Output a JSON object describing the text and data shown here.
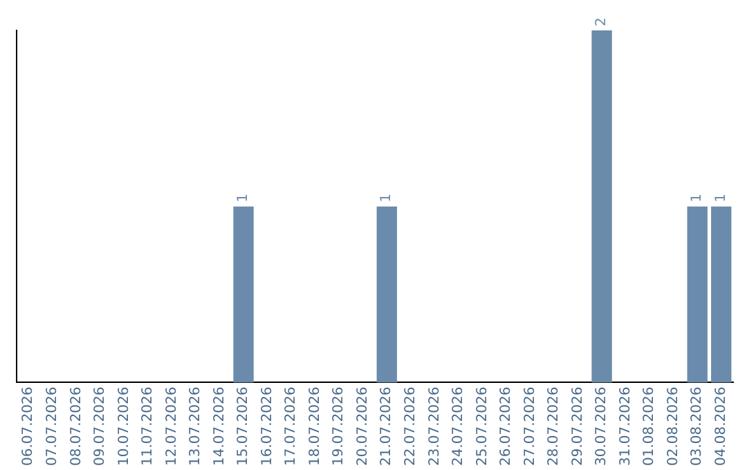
{
  "chart_data": {
    "type": "bar",
    "categories": [
      "06.07.2026",
      "07.07.2026",
      "08.07.2026",
      "09.07.2026",
      "10.07.2026",
      "11.07.2026",
      "12.07.2026",
      "13.07.2026",
      "14.07.2026",
      "15.07.2026",
      "16.07.2026",
      "17.07.2026",
      "18.07.2026",
      "19.07.2026",
      "20.07.2026",
      "21.07.2026",
      "22.07.2026",
      "23.07.2026",
      "24.07.2026",
      "25.07.2026",
      "26.07.2026",
      "27.07.2026",
      "28.07.2026",
      "29.07.2026",
      "30.07.2026",
      "31.07.2026",
      "01.08.2026",
      "02.08.2026",
      "03.08.2026",
      "04.08.2026"
    ],
    "values": [
      0,
      0,
      0,
      0,
      0,
      0,
      0,
      0,
      0,
      1,
      0,
      0,
      0,
      0,
      0,
      1,
      0,
      0,
      0,
      0,
      0,
      0,
      0,
      0,
      2,
      0,
      0,
      0,
      1,
      1
    ],
    "value_labels": [
      null,
      null,
      null,
      null,
      null,
      null,
      null,
      null,
      null,
      "1",
      null,
      null,
      null,
      null,
      null,
      "1",
      null,
      null,
      null,
      null,
      null,
      null,
      null,
      null,
      "2",
      null,
      null,
      null,
      "1",
      "1"
    ],
    "color": "#6a8bab",
    "grid": false,
    "legend": false,
    "tick_labels": "x"
  }
}
